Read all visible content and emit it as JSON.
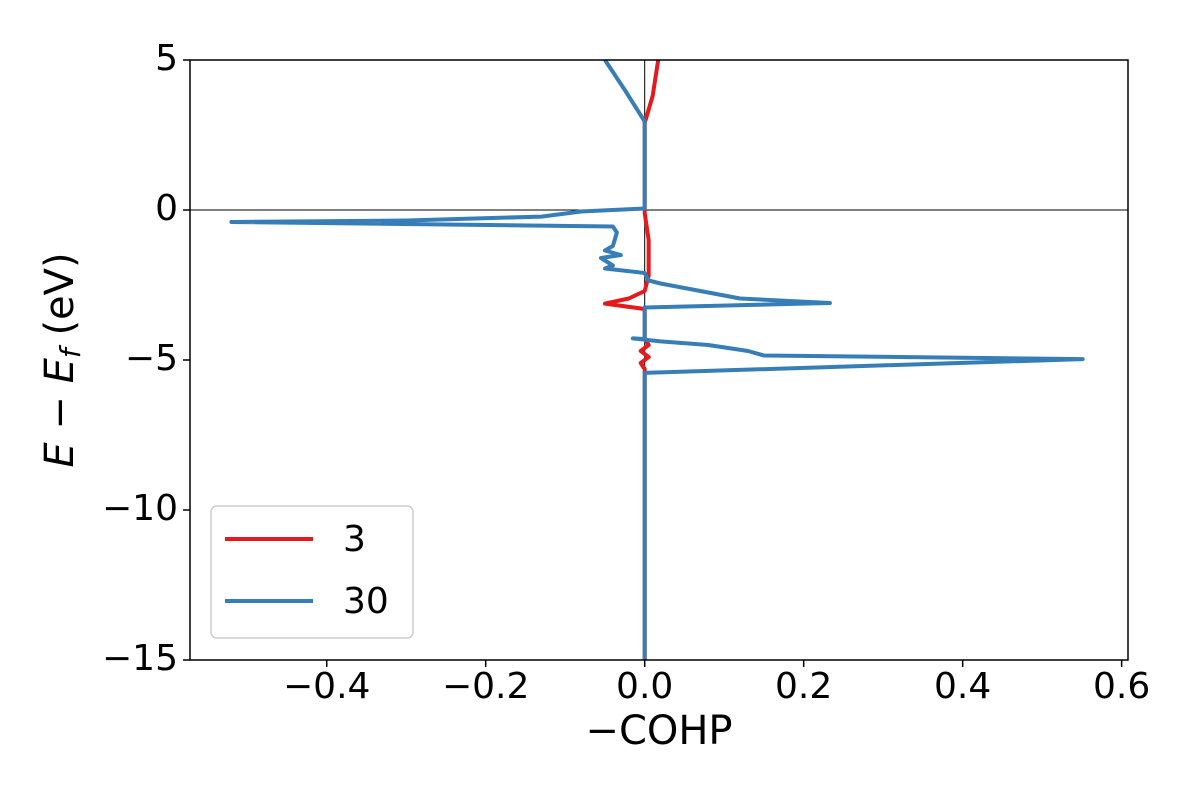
{
  "chart_data": {
    "type": "line",
    "xlabel": "−COHP",
    "ylabel": [
      "E",
      " − ",
      "E",
      "f",
      " (eV)"
    ],
    "xlim": [
      -0.572,
      0.608
    ],
    "ylim": [
      -15,
      5
    ],
    "xticks": [
      {
        "value": -0.4,
        "label": "−0.4"
      },
      {
        "value": -0.2,
        "label": "−0.2"
      },
      {
        "value": 0,
        "label": "0.0"
      },
      0.2,
      0.4,
      0.6
    ],
    "yticks": [
      {
        "value": -15,
        "label": "−15"
      },
      {
        "value": -10,
        "label": "−10"
      },
      {
        "value": -5,
        "label": "−5"
      },
      0,
      5
    ],
    "zero_lines": true,
    "grid": false,
    "legend": "lower left",
    "series": [
      {
        "name": "3",
        "color": "#e41a1c",
        "x": [
          0,
          0,
          -0.005,
          0.005,
          -0.005,
          0.005,
          0,
          0,
          -0.05,
          -0.02,
          0,
          0.005,
          0.005,
          0,
          0,
          0.01,
          0.017
        ],
        "values": [
          -15,
          -5.3,
          -5.1,
          -4.9,
          -4.7,
          -4.5,
          -4.3,
          -3.3,
          -3.12,
          -2.95,
          -2.7,
          -2.2,
          -1,
          -0.1,
          2.9,
          3.8,
          5
        ]
      },
      {
        "name": "30",
        "color": "#377eb8",
        "x": [
          0,
          0,
          0.551,
          0.15,
          0.13,
          0.08,
          0.02,
          -0.015,
          0,
          0,
          0.233,
          0.12,
          0.02,
          0.005,
          0,
          -0.05,
          -0.04,
          -0.055,
          -0.03,
          -0.05,
          -0.04,
          -0.035,
          -0.04,
          -0.52,
          -0.3,
          -0.13,
          -0.08,
          0,
          0,
          -0.025,
          -0.05
        ],
        "values": [
          -15,
          -5.43,
          -4.97,
          -4.85,
          -4.7,
          -4.5,
          -4.38,
          -4.28,
          -4.3,
          -3.25,
          -3.1,
          -2.95,
          -2.45,
          -2.35,
          -2.1,
          -1.95,
          -1.85,
          -1.6,
          -1.5,
          -1.35,
          -1.2,
          -0.75,
          -0.55,
          -0.4,
          -0.35,
          -0.22,
          -0.05,
          0.05,
          2.95,
          4,
          5
        ]
      }
    ]
  }
}
